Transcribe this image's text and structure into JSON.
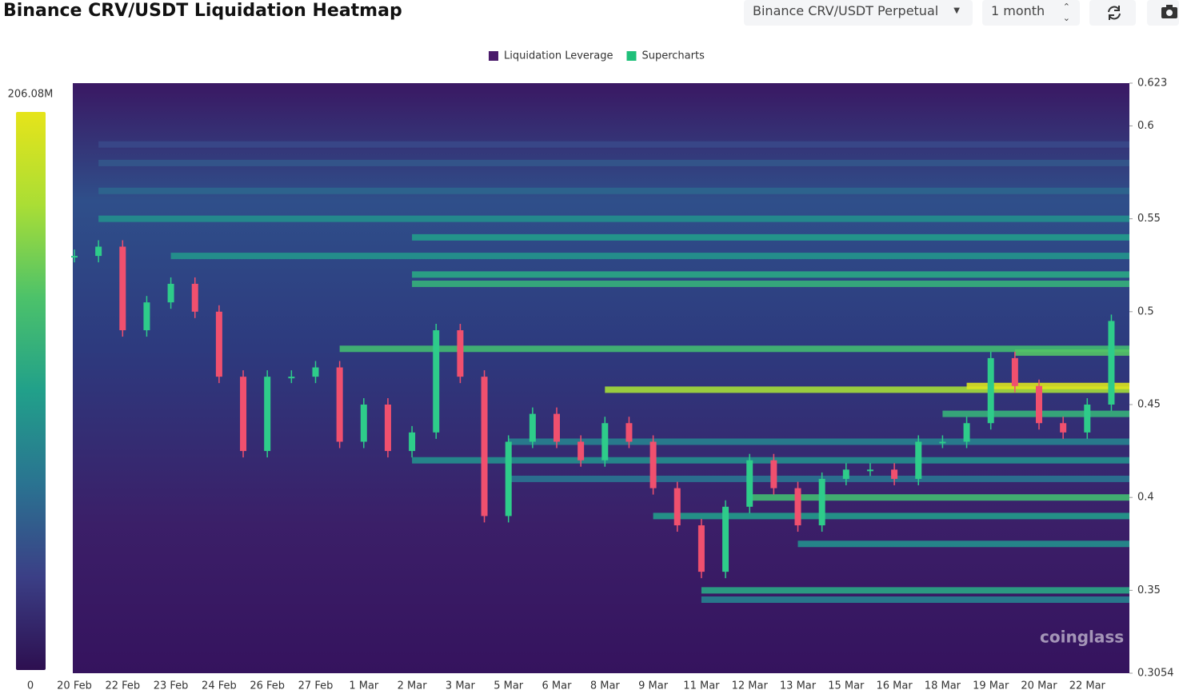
{
  "header": {
    "title": "Binance CRV/USDT Liquidation Heatmap"
  },
  "controls": {
    "pair": "Binance CRV/USDT Perpetual",
    "range": "1 month"
  },
  "watermark": "coinglass",
  "chart_data": {
    "type": "heatmap",
    "legend": [
      {
        "name": "Liquidation Leverage",
        "color": "#4a1a6b"
      },
      {
        "name": "Supercharts",
        "color": "#1fc07a"
      }
    ],
    "colorscale": [
      "#2d0f50",
      "#3b3f86",
      "#2a7391",
      "#21a08a",
      "#4cc26a",
      "#aade35",
      "#e6e41a"
    ],
    "clim": [
      0,
      206080000
    ],
    "cticks": [
      {
        "value": 206080000,
        "label": "206.08M"
      },
      0
    ],
    "ylim": [
      0.3054,
      0.623
    ],
    "yticks": [
      0.623,
      0.6,
      0.55,
      0.5,
      0.45,
      0.4,
      0.35,
      0.3054
    ],
    "categories": [
      "20 Feb",
      null,
      "22 Feb",
      null,
      "23 Feb",
      null,
      "24 Feb",
      null,
      "26 Feb",
      null,
      "27 Feb",
      null,
      "1 Mar",
      null,
      "2 Mar",
      null,
      "3 Mar",
      null,
      "5 Mar",
      null,
      "6 Mar",
      null,
      "8 Mar",
      null,
      "9 Mar",
      null,
      "11 Mar",
      null,
      "12 Mar",
      null,
      "13 Mar",
      null,
      "15 Mar",
      null,
      "16 Mar",
      null,
      "18 Mar",
      null,
      "19 Mar",
      null,
      "20 Mar",
      null,
      "22 Mar",
      null
    ],
    "price": {
      "up_color": "#2ecc8a",
      "down_color": "#f0506e",
      "values": [
        0.53,
        0.535,
        0.49,
        0.505,
        0.515,
        0.5,
        0.465,
        0.425,
        0.465,
        0.465,
        0.47,
        0.43,
        0.45,
        0.425,
        0.435,
        0.49,
        0.465,
        0.39,
        0.43,
        0.445,
        0.43,
        0.42,
        0.44,
        0.43,
        0.405,
        0.385,
        0.36,
        0.395,
        0.42,
        0.405,
        0.385,
        0.41,
        0.415,
        0.415,
        0.41,
        0.43,
        0.43,
        0.44,
        0.475,
        0.46,
        0.44,
        0.435,
        0.45,
        0.495
      ]
    },
    "bands": {
      "levels": [
        0.59,
        0.58,
        0.565,
        0.55,
        0.54,
        0.53,
        0.52,
        0.515,
        0.48,
        0.478,
        0.458,
        0.46,
        0.445,
        0.43,
        0.42,
        0.41,
        0.4,
        0.39,
        0.375,
        0.35,
        0.345
      ],
      "start": [
        1,
        1,
        1,
        1,
        14,
        4,
        14,
        14,
        11,
        39,
        22,
        37,
        36,
        18,
        14,
        18,
        28,
        24,
        30,
        26,
        26
      ],
      "values": [
        40000000,
        50000000,
        60000000,
        90000000,
        100000000,
        95000000,
        110000000,
        120000000,
        130000000,
        140000000,
        170000000,
        200000000,
        120000000,
        80000000,
        90000000,
        70000000,
        130000000,
        100000000,
        90000000,
        110000000,
        80000000
      ]
    }
  }
}
